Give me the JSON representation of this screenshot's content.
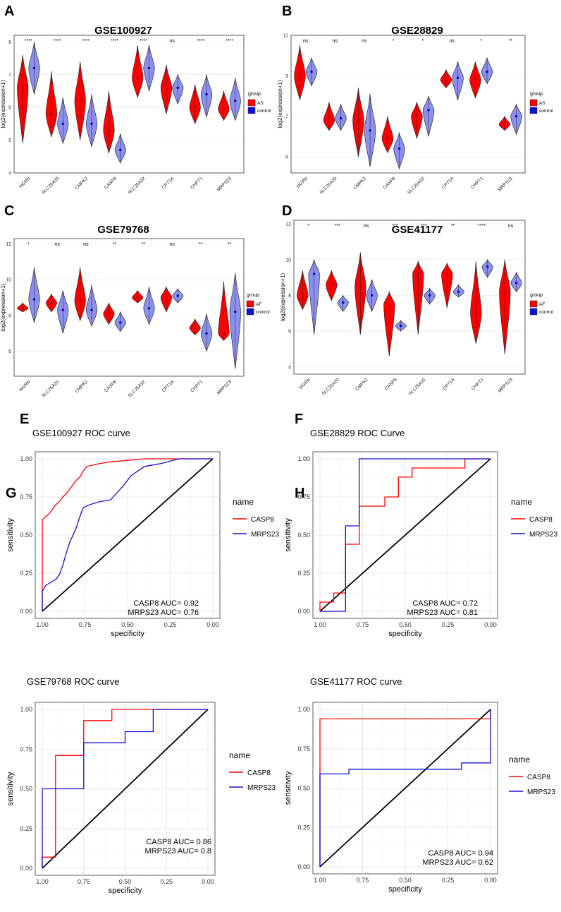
{
  "figure": {
    "panel_letters": [
      "A",
      "B",
      "C",
      "D",
      "E",
      "F",
      "G",
      "H"
    ]
  },
  "colors": {
    "case": "#ff0000",
    "control": "#1010d0",
    "diag": "#000000"
  },
  "violin_genes": [
    "NGRN",
    "SLC25A20",
    "CMPK2",
    "CASP8",
    "SLC25A32",
    "CPT1A",
    "CHPT1",
    "MRPS23"
  ],
  "chart_data": [
    {
      "type": "violin",
      "panel": "A",
      "title": "GSE100927",
      "ylabel": "log2(expression+1)",
      "ylim": [
        4,
        8.2
      ],
      "yticks": [
        4,
        5,
        6,
        7,
        8
      ],
      "legend_title": "group",
      "groups": [
        "AS",
        "control"
      ],
      "significance": [
        "****",
        "****",
        "****",
        "****",
        "****",
        "ns",
        "****",
        "****"
      ],
      "series": [
        {
          "name": "AS",
          "median": [
            6.6,
            5.8,
            6.2,
            5.3,
            6.9,
            6.6,
            6.0,
            5.95
          ],
          "min": [
            4.9,
            5.1,
            5.0,
            4.6,
            6.3,
            5.8,
            5.5,
            5.6
          ],
          "max": [
            7.6,
            7.1,
            7.4,
            6.5,
            7.9,
            7.3,
            6.7,
            6.5
          ]
        },
        {
          "name": "control",
          "median": [
            7.2,
            5.5,
            5.5,
            4.7,
            7.2,
            6.6,
            6.4,
            6.2
          ],
          "min": [
            6.4,
            4.9,
            4.8,
            4.3,
            6.5,
            6.1,
            5.7,
            5.6
          ],
          "max": [
            8.0,
            6.3,
            6.4,
            5.2,
            7.9,
            7.0,
            7.0,
            6.9
          ]
        }
      ]
    },
    {
      "type": "violin",
      "panel": "B",
      "title": "GSE28829",
      "ylabel": "log2(expression+1)",
      "ylim": [
        4.2,
        11
      ],
      "yticks": [
        5,
        7,
        9,
        11
      ],
      "legend_title": "group",
      "groups": [
        "AS",
        "control"
      ],
      "significance": [
        "ns",
        "ns",
        "ns",
        "*",
        "*",
        "ns",
        "*",
        "**"
      ],
      "series": [
        {
          "name": "AS",
          "median": [
            9.0,
            6.8,
            6.8,
            5.9,
            7.0,
            8.8,
            8.8,
            6.6
          ],
          "min": [
            7.8,
            6.3,
            5.0,
            5.2,
            5.9,
            8.4,
            7.9,
            6.3
          ],
          "max": [
            10.5,
            7.7,
            8.4,
            7.0,
            7.7,
            9.3,
            9.7,
            7.0
          ]
        },
        {
          "name": "control",
          "median": [
            9.2,
            6.9,
            6.3,
            5.4,
            7.3,
            8.9,
            9.2,
            7.0
          ],
          "min": [
            8.5,
            6.3,
            4.5,
            4.4,
            6.0,
            7.8,
            8.6,
            6.1
          ],
          "max": [
            9.9,
            7.6,
            8.1,
            6.2,
            8.0,
            9.7,
            9.9,
            7.6
          ]
        }
      ]
    },
    {
      "type": "violin",
      "panel": "C",
      "title": "GSE79768",
      "ylabel": "log2(expression+1)",
      "ylim": [
        4.6,
        12.3
      ],
      "yticks": [
        6,
        8,
        10,
        12
      ],
      "legend_title": "group",
      "groups": [
        "AF",
        "control"
      ],
      "significance": [
        "*",
        "ns",
        "ns",
        "**",
        "**",
        "ns",
        "**",
        "**"
      ],
      "series": [
        {
          "name": "AF",
          "median": [
            8.4,
            8.7,
            8.8,
            8.1,
            9.0,
            9.0,
            7.3,
            7.0
          ],
          "min": [
            8.2,
            8.2,
            7.7,
            7.5,
            8.7,
            8.2,
            6.9,
            6.6
          ],
          "max": [
            8.7,
            9.2,
            10.7,
            8.7,
            9.4,
            9.6,
            7.8,
            9.9
          ]
        },
        {
          "name": "control",
          "median": [
            8.9,
            8.3,
            8.3,
            7.6,
            8.4,
            9.1,
            7.0,
            8.2
          ],
          "min": [
            7.6,
            7.0,
            7.4,
            7.1,
            7.5,
            8.7,
            6.0,
            5.0
          ],
          "max": [
            10.7,
            9.4,
            9.7,
            8.2,
            9.6,
            9.5,
            8.1,
            10.4
          ]
        }
      ]
    },
    {
      "type": "violin",
      "panel": "D",
      "title": "GSE41177",
      "ylabel": "log2(expression+1)",
      "ylim": [
        3.6,
        12.2
      ],
      "yticks": [
        4,
        6,
        8,
        10,
        12
      ],
      "legend_title": "group",
      "groups": [
        "AF",
        "control"
      ],
      "significance": [
        "*",
        "***",
        "ns",
        "***",
        "***",
        "**",
        "****",
        "ns"
      ],
      "series": [
        {
          "name": "AF",
          "median": [
            8.0,
            8.6,
            8.5,
            7.5,
            9.2,
            9.2,
            7.0,
            8.2
          ],
          "min": [
            7.2,
            7.7,
            5.8,
            4.6,
            5.8,
            7.3,
            5.3,
            4.7
          ],
          "max": [
            9.4,
            9.4,
            10.4,
            8.2,
            9.9,
            9.8,
            9.9,
            10.0
          ]
        },
        {
          "name": "control",
          "median": [
            9.2,
            7.6,
            8.0,
            6.3,
            8.0,
            8.2,
            9.6,
            8.7
          ],
          "min": [
            5.8,
            7.1,
            7.1,
            6.0,
            7.5,
            7.9,
            9.0,
            8.2
          ],
          "max": [
            10.0,
            8.0,
            8.9,
            6.6,
            8.4,
            8.6,
            10.0,
            9.3
          ]
        }
      ]
    },
    {
      "type": "line",
      "subtype": "roc",
      "panel": "E",
      "title": "GSE100927 ROC curve",
      "xlabel": "specificity",
      "ylabel": "sensitivity",
      "xlim": [
        1,
        0
      ],
      "ylim": [
        0,
        1
      ],
      "xticks": [
        "1.00",
        "0.75",
        "0.50",
        "0.25",
        "0.00"
      ],
      "yticks": [
        "0.00",
        "0.25",
        "0.50",
        "0.75",
        "1.00"
      ],
      "legend_title": "name",
      "auc_labels": [
        "CASP8  AUC= 0.92",
        "MRPS23  AUC= 0.76"
      ],
      "series": [
        {
          "name": "CASP8",
          "x": [
            1,
            1,
            0.98,
            0.96,
            0.94,
            0.92,
            0.9,
            0.88,
            0.86,
            0.84,
            0.82,
            0.8,
            0.78,
            0.76,
            0.74,
            0.7,
            0.66,
            0.6,
            0.5,
            0.4,
            0.3,
            0.2,
            0
          ],
          "y": [
            0,
            0.6,
            0.62,
            0.64,
            0.67,
            0.7,
            0.72,
            0.75,
            0.77,
            0.8,
            0.83,
            0.86,
            0.88,
            0.92,
            0.95,
            0.96,
            0.97,
            0.98,
            0.99,
            1,
            1,
            1,
            1
          ]
        },
        {
          "name": "MRPS23",
          "x": [
            1,
            1,
            0.98,
            0.95,
            0.92,
            0.9,
            0.88,
            0.86,
            0.84,
            0.82,
            0.8,
            0.78,
            0.76,
            0.72,
            0.66,
            0.6,
            0.56,
            0.52,
            0.48,
            0.44,
            0.4,
            0.3,
            0.2,
            0
          ],
          "y": [
            0,
            0.13,
            0.17,
            0.19,
            0.21,
            0.24,
            0.3,
            0.38,
            0.45,
            0.5,
            0.55,
            0.62,
            0.68,
            0.7,
            0.72,
            0.73,
            0.78,
            0.83,
            0.89,
            0.92,
            0.95,
            0.97,
            1,
            1
          ]
        }
      ]
    },
    {
      "type": "line",
      "subtype": "roc",
      "panel": "F",
      "title": "GSE28829 ROC Curve",
      "xlabel": "specificity",
      "ylabel": "sensitivity",
      "xlim": [
        1,
        0
      ],
      "ylim": [
        0,
        1
      ],
      "xticks": [
        "1.00",
        "0.75",
        "0.50",
        "0.25",
        "0.00"
      ],
      "yticks": [
        "0.00",
        "0.25",
        "0.50",
        "0.75",
        "1.00"
      ],
      "legend_title": "name",
      "auc_labels": [
        "CASP8  AUC= 0.72",
        "MRPS23  AUC= 0.81"
      ],
      "series": [
        {
          "name": "CASP8",
          "x": [
            1,
            1,
            0.92,
            0.92,
            0.85,
            0.85,
            0.77,
            0.77,
            0.62,
            0.62,
            0.54,
            0.54,
            0.46,
            0.46,
            0.15,
            0.15,
            0
          ],
          "y": [
            0,
            0.06,
            0.06,
            0.12,
            0.12,
            0.44,
            0.44,
            0.69,
            0.69,
            0.75,
            0.75,
            0.88,
            0.88,
            0.94,
            0.94,
            1,
            1
          ]
        },
        {
          "name": "MRPS23",
          "x": [
            1,
            0.85,
            0.85,
            0.77,
            0.77,
            0
          ],
          "y": [
            0,
            0,
            0.56,
            0.56,
            1,
            1
          ]
        }
      ]
    },
    {
      "type": "line",
      "subtype": "roc",
      "panel": "G",
      "title": "GSE79768 ROC curve",
      "xlabel": "specificity",
      "ylabel": "sensitivity",
      "xlim": [
        1,
        0
      ],
      "ylim": [
        0,
        1
      ],
      "xticks": [
        "1.00",
        "0.75",
        "0.50",
        "0.25",
        "0.00"
      ],
      "yticks": [
        "0.00",
        "0.25",
        "0.50",
        "0.75",
        "1.00"
      ],
      "legend_title": "name",
      "auc_labels": [
        "CASP8  AUC= 0.86",
        "MRPS23  AUC= 0.8"
      ],
      "series": [
        {
          "name": "CASP8",
          "x": [
            1,
            1,
            0.92,
            0.92,
            0.75,
            0.75,
            0.58,
            0.58,
            0.42,
            0.42,
            0
          ],
          "y": [
            0,
            0.07,
            0.07,
            0.71,
            0.71,
            0.93,
            0.93,
            1,
            1,
            1,
            1
          ]
        },
        {
          "name": "MRPS23",
          "x": [
            1,
            1,
            0.75,
            0.75,
            0.5,
            0.5,
            0.33,
            0.33,
            0
          ],
          "y": [
            0,
            0.5,
            0.5,
            0.79,
            0.79,
            0.86,
            0.86,
            1,
            1
          ]
        }
      ]
    },
    {
      "type": "line",
      "subtype": "roc",
      "panel": "H",
      "title": "GSE41177 ROC curve",
      "xlabel": "specificity",
      "ylabel": "sensitivity",
      "xlim": [
        1,
        0
      ],
      "ylim": [
        0,
        1
      ],
      "xticks": [
        "1.00",
        "0.75",
        "0.50",
        "0.25",
        "0.00"
      ],
      "yticks": [
        "0.00",
        "0.25",
        "0.50",
        "0.75",
        "1.00"
      ],
      "legend_title": "name",
      "auc_labels": [
        "CASP8  AUC= 0.94",
        "MRPS23  AUC= 0.62"
      ],
      "series": [
        {
          "name": "CASP8",
          "x": [
            1,
            1,
            0,
            0
          ],
          "y": [
            0,
            0.94,
            0.94,
            1
          ]
        },
        {
          "name": "MRPS23",
          "x": [
            1,
            1,
            0.83,
            0.83,
            0.17,
            0.17,
            0,
            0
          ],
          "y": [
            0,
            0.59,
            0.59,
            0.62,
            0.62,
            0.66,
            0.66,
            1
          ]
        }
      ]
    }
  ]
}
